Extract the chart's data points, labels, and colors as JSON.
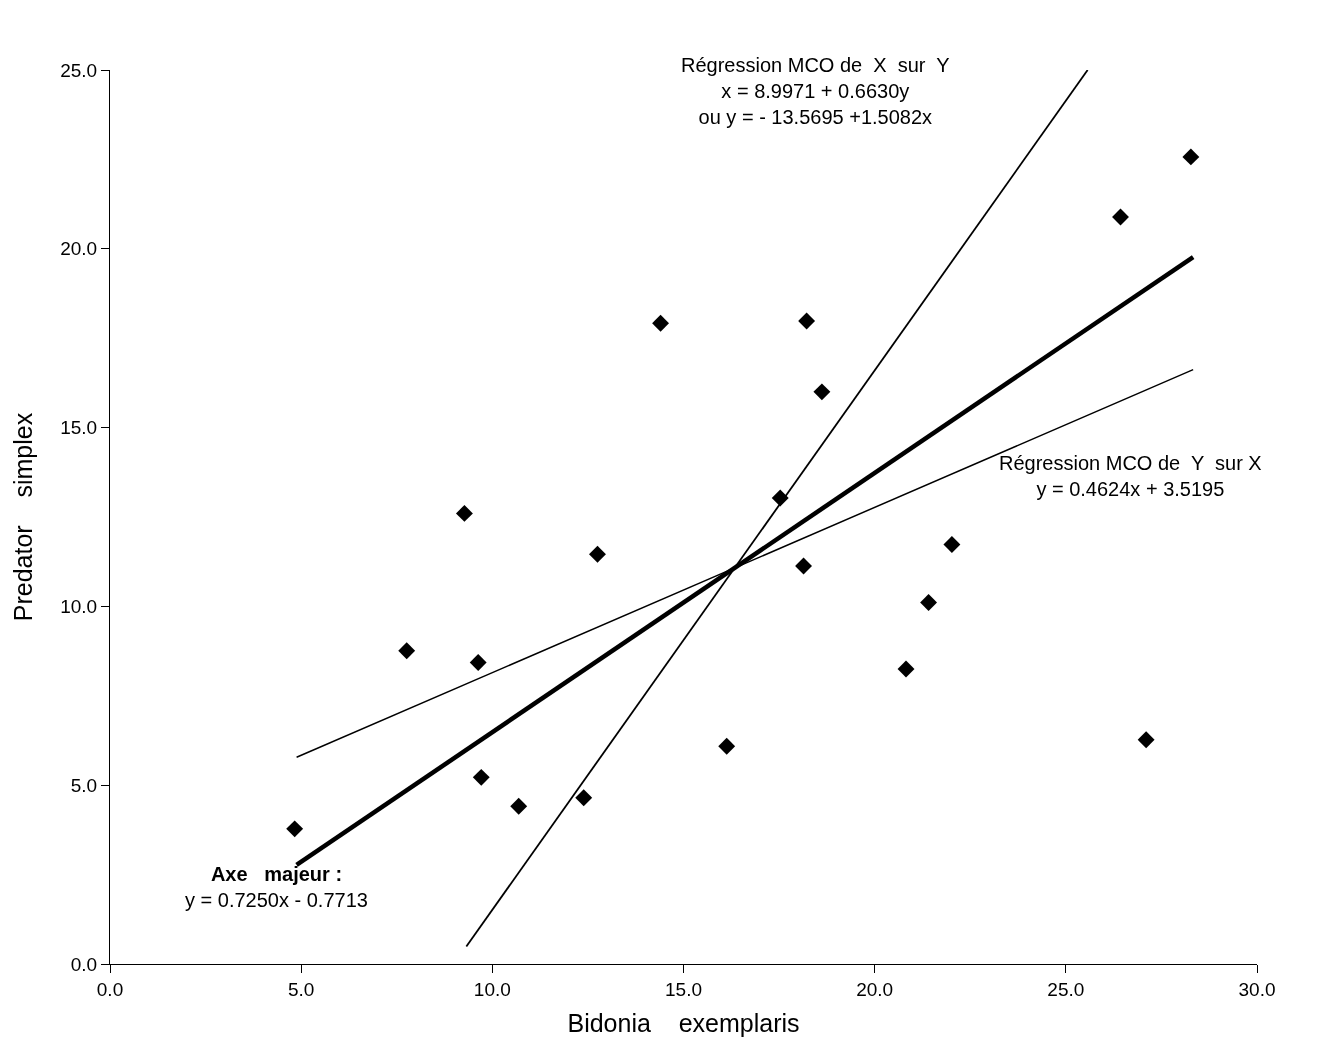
{
  "chart_data": {
    "type": "scatter",
    "xlabel": "Bidonia    exemplaris",
    "ylabel": "Predator    simplex",
    "xlim": [
      0,
      30
    ],
    "xticks": [
      {
        "value": 0,
        "label": "0.0"
      },
      {
        "value": 5,
        "label": "5.0"
      },
      {
        "value": 10,
        "label": "10.0"
      },
      {
        "value": 15,
        "label": "15.0"
      },
      {
        "value": 20,
        "label": "20.0"
      },
      {
        "value": 25,
        "label": "25.0"
      },
      {
        "value": 30,
        "label": "30.0"
      }
    ],
    "ylim": [
      0,
      25
    ],
    "yticks": [
      {
        "value": 0,
        "label": "0.0"
      },
      {
        "value": 5,
        "label": "5.0"
      },
      {
        "value": 10,
        "label": "10.0"
      },
      {
        "value": 15,
        "label": "15.0"
      },
      {
        "value": 20,
        "label": "20.0"
      },
      {
        "value": 25,
        "label": "25.0"
      }
    ],
    "legend": false,
    "marker": "diamond",
    "series": [
      {
        "color": "#000000",
        "x": [
          4.83,
          7.76,
          9.27,
          9.63,
          9.71,
          10.69,
          12.39,
          12.75,
          14.4,
          16.13,
          17.53,
          18.14,
          18.22,
          18.62,
          20.82,
          21.41,
          22.02,
          26.43,
          27.1,
          28.27
        ],
        "values": [
          3.78,
          8.76,
          12.6,
          8.43,
          5.22,
          4.41,
          4.65,
          11.46,
          17.92,
          6.09,
          13.03,
          11.13,
          17.98,
          16.0,
          8.25,
          10.11,
          11.73,
          20.89,
          6.27,
          22.57
        ]
      },
      {
        "type": "line",
        "marker": "none",
        "color": "#000000",
        "x": [
          4.88,
          28.33
        ],
        "values": [
          5.78,
          16.62
        ]
      },
      {
        "type": "line",
        "marker": "none",
        "color": "#000000",
        "x": [
          4.88,
          28.33
        ],
        "values": [
          2.77,
          19.77
        ]
      },
      {
        "type": "line",
        "marker": "none",
        "color": "#000000",
        "x": [
          9.32,
          25.57
        ],
        "values": [
          0.49,
          25
        ]
      }
    ],
    "annotations": [
      "Régression MCO de  X  sur  Y\nx = 8.9971 + 0.6630y\nou y = - 13.5695 +1.5082x",
      "Régression MCO de  Y  sur X\ny = 0.4624x + 3.5195",
      "Axe   majeur :\ny = 0.7250x - 0.7713"
    ]
  }
}
